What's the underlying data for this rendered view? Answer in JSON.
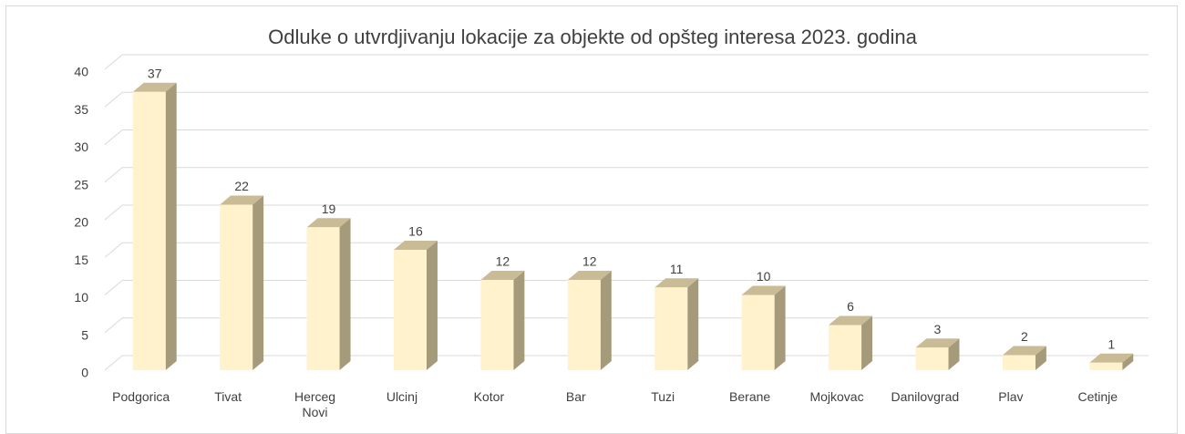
{
  "chart_data": {
    "type": "bar3d",
    "title": "Odluke o utvrdjivanju lokacije za objekte od opšteg interesa 2023. godina",
    "categories": [
      "Podgorica",
      "Tivat",
      "Herceg Novi",
      "Ulcinj",
      "Kotor",
      "Bar",
      "Tuzi",
      "Berane",
      "Mojkovac",
      "Danilovgrad",
      "Plav",
      "Cetinje"
    ],
    "values": [
      37,
      22,
      19,
      16,
      12,
      12,
      11,
      10,
      6,
      3,
      2,
      1
    ],
    "color": "#fff2cc",
    "ylim": [
      0,
      40
    ],
    "yticks": [
      0,
      5,
      10,
      15,
      20,
      25,
      30,
      35,
      40
    ],
    "grid": true
  }
}
